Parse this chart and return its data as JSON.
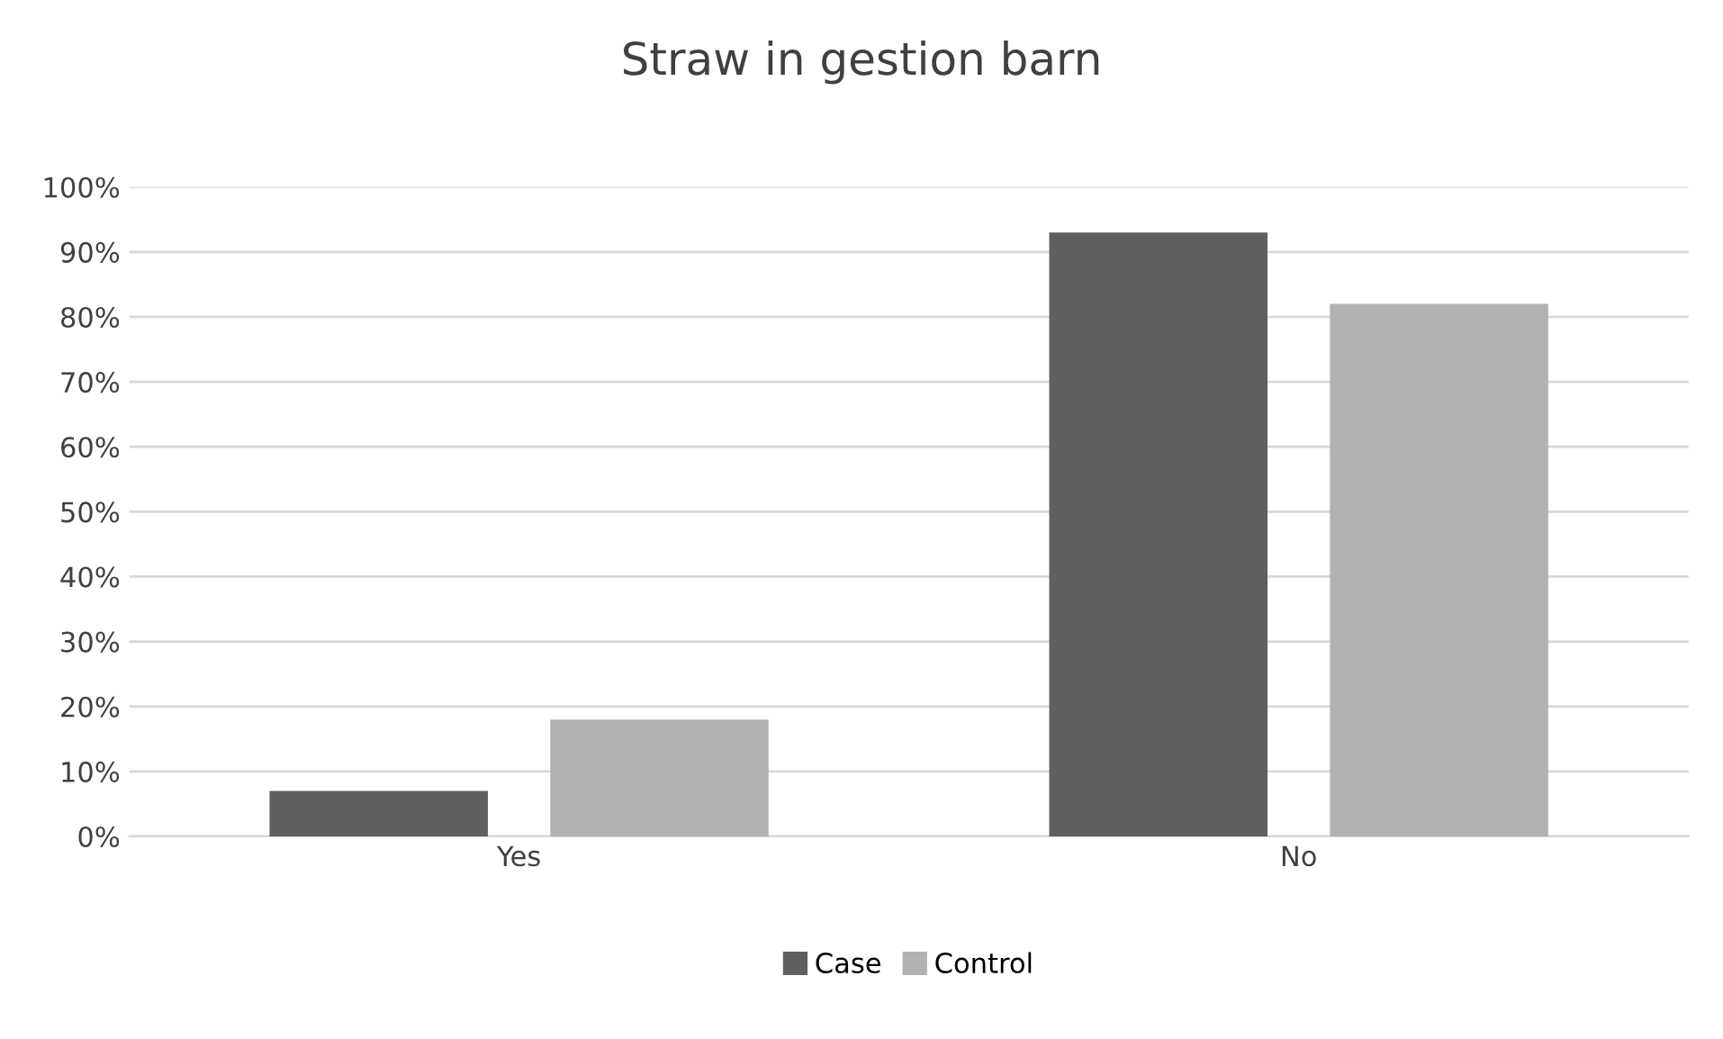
{
  "chart_data": {
    "type": "bar",
    "title": "Straw in gestion barn",
    "categories": [
      "Yes",
      "No"
    ],
    "series": [
      {
        "name": "Case",
        "color": "#5f5f5f",
        "values": [
          7,
          93
        ]
      },
      {
        "name": "Control",
        "color": "#b2b2b2",
        "values": [
          18,
          82
        ]
      }
    ],
    "ylim": [
      0,
      100
    ],
    "yticks": [
      {
        "value": 0,
        "label": "0%"
      },
      {
        "value": 10,
        "label": "10%"
      },
      {
        "value": 20,
        "label": "20%"
      },
      {
        "value": 30,
        "label": "30%"
      },
      {
        "value": 40,
        "label": "40%"
      },
      {
        "value": 50,
        "label": "50%"
      },
      {
        "value": 60,
        "label": "60%"
      },
      {
        "value": 70,
        "label": "70%"
      },
      {
        "value": 80,
        "label": "80%"
      },
      {
        "value": 90,
        "label": "90%"
      },
      {
        "value": 100,
        "label": "100%"
      }
    ],
    "grid": "y",
    "legend": "bottom"
  }
}
